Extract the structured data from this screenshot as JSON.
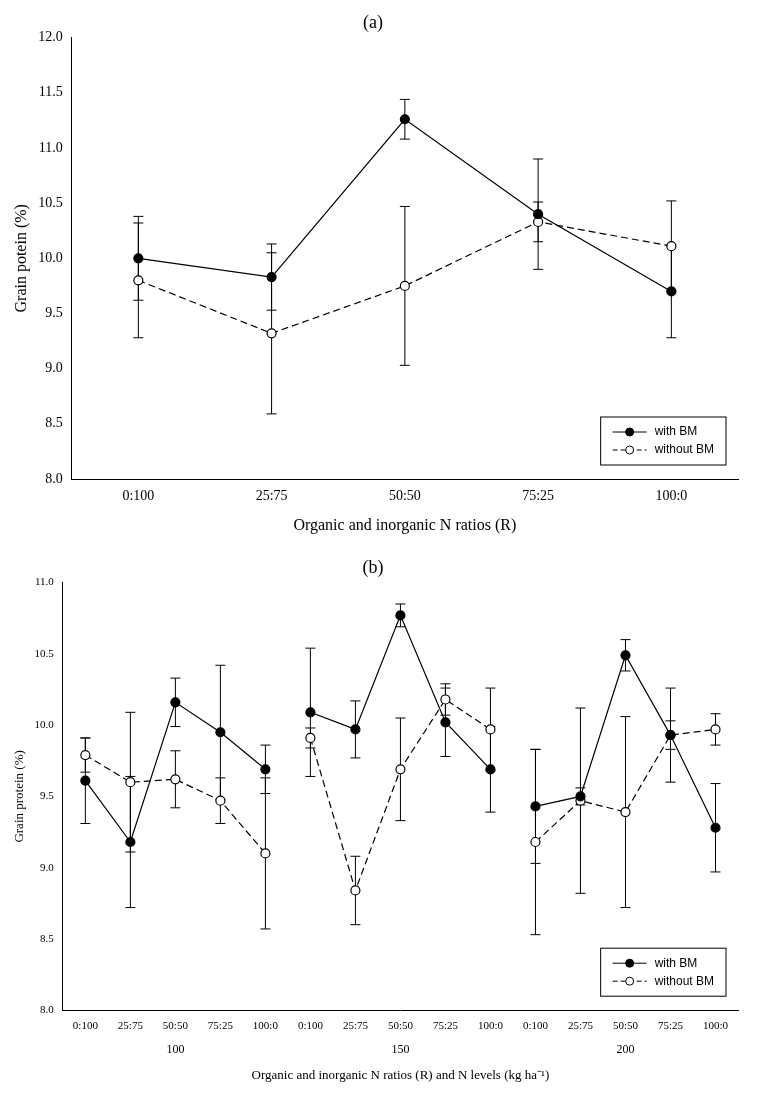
{
  "chart_data": [
    {
      "type": "line",
      "title": "(a)",
      "x_label": "Organic and inorganic N ratios (R)",
      "y_label": "Grain potein (%)",
      "categories": [
        "0:100",
        "25:75",
        "50:50",
        "75:25",
        "100:0"
      ],
      "series": [
        {
          "name": "with BM",
          "color": "#000000",
          "marker": "filled_circle",
          "line_style": "solid",
          "values": [
            10.0,
            9.83,
            11.26,
            10.4,
            9.7
          ],
          "errors": [
            0.38,
            0.3,
            0.18,
            0.5,
            0.42
          ]
        },
        {
          "name": "without BM",
          "color": "#000000",
          "marker": "open_circle",
          "line_style": "dashed",
          "values": [
            9.8,
            9.32,
            9.75,
            10.33,
            10.11
          ],
          "errors": [
            0.52,
            0.73,
            0.72,
            0.18,
            0.41
          ]
        }
      ],
      "ylim": [
        8,
        12
      ],
      "yticks": [
        {
          "value": 8,
          "label": "8.0"
        },
        {
          "value": 8.5,
          "label": "8.5"
        },
        {
          "value": 9,
          "label": "9.0"
        },
        {
          "value": 9.5,
          "label": "9.5"
        },
        {
          "value": 10,
          "label": "10.0"
        },
        {
          "value": 10.5,
          "label": "10.5"
        },
        {
          "value": 11,
          "label": "11.0"
        },
        {
          "value": 11.5,
          "label": "11.5"
        },
        {
          "value": 12,
          "label": "12.0"
        }
      ],
      "grid": false,
      "legend": "lower right"
    },
    {
      "type": "line",
      "title": "(b)",
      "x_label": "Organic and inorganic N ratios (R) and N levels (kg ha⁻¹)",
      "y_label": "Grain protein (%)",
      "categories": [
        "0:100",
        "25:75",
        "50:50",
        "75:25",
        "100:0",
        "0:100",
        "25:75",
        "50:50",
        "75:25",
        "100:0",
        "0:100",
        "25:75",
        "50:50",
        "75:25",
        "100:0"
      ],
      "groups": [
        100,
        150,
        200
      ],
      "series": [
        {
          "name": "with BM",
          "color": "#000000",
          "marker": "filled_circle",
          "line_style": "solid",
          "values": [
            9.61,
            9.18,
            10.16,
            9.95,
            9.69,
            10.09,
            9.97,
            10.77,
            10.02,
            9.69,
            9.43,
            9.5,
            10.49,
            9.93,
            9.28
          ],
          "errors": [
            0.3,
            0.46,
            0.17,
            0.47,
            0.17,
            0.45,
            0.2,
            0.08,
            0.24,
            0.3,
            0.4,
            0.06,
            0.11,
            0.33,
            0.31
          ]
        },
        {
          "name": "without BM",
          "color": "#000000",
          "marker": "open_circle",
          "line_style": "dashed",
          "values": [
            9.79,
            9.6,
            9.62,
            9.47,
            9.1,
            9.91,
            8.84,
            9.69,
            10.18,
            9.97,
            9.18,
            9.47,
            9.39,
            9.93,
            9.97
          ],
          "errors": [
            0.12,
            0.49,
            0.2,
            0.16,
            0.53,
            0.07,
            0.24,
            0.36,
            0.11,
            0.29,
            0.65,
            0.65,
            0.67,
            0.1,
            0.11
          ]
        }
      ],
      "ylim": [
        8,
        11
      ],
      "yticks": [
        {
          "value": 8,
          "label": "8.0"
        },
        {
          "value": 8.5,
          "label": "8.5"
        },
        {
          "value": 9,
          "label": "9.0"
        },
        {
          "value": 9.5,
          "label": "9.5"
        },
        {
          "value": 10,
          "label": "10.0"
        },
        {
          "value": 10.5,
          "label": "10.5"
        },
        {
          "value": 11,
          "label": "11.0"
        }
      ],
      "grid": false,
      "legend": "lower right"
    }
  ]
}
